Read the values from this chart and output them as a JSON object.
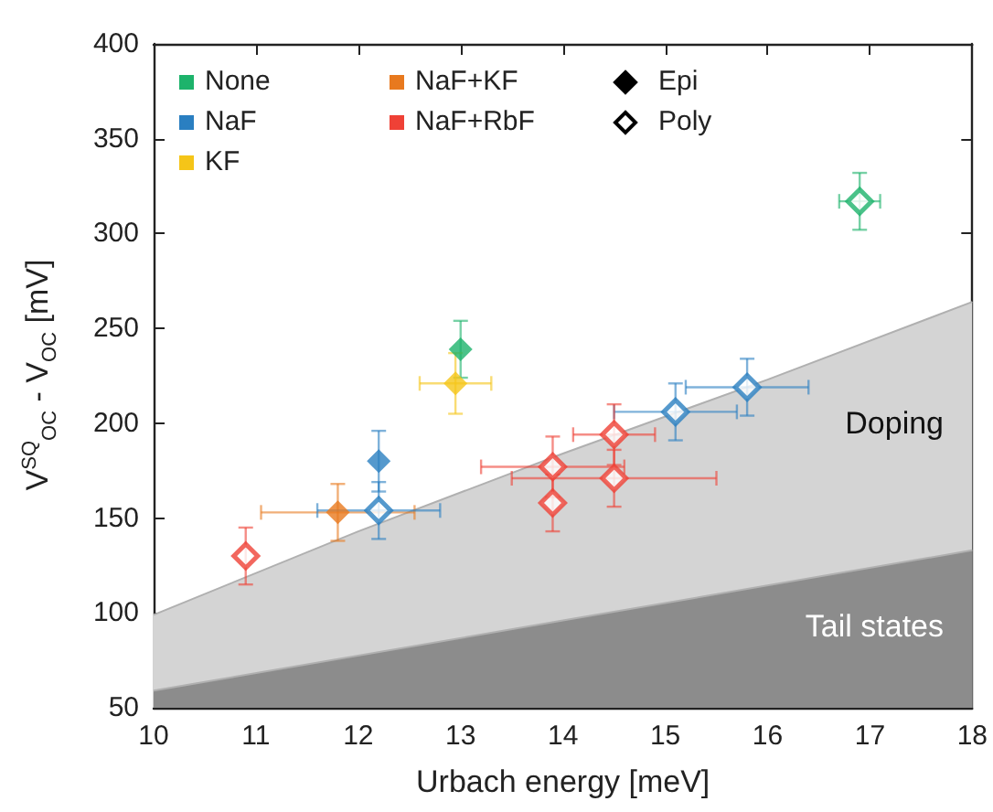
{
  "chart_data": {
    "type": "scatter",
    "xlabel": "Urbach energy [meV]",
    "ylabel": "V$^{SQ}$$_{OC}$ - V$_{OC}$ [mV]",
    "xlim": [
      10,
      18
    ],
    "xticks": [
      10,
      11,
      12,
      13,
      14,
      15,
      16,
      17,
      18
    ],
    "ylim": [
      50,
      400
    ],
    "yticks": [
      50,
      100,
      150,
      200,
      250,
      300,
      350,
      400
    ],
    "grid": false,
    "annotations": [
      "None",
      "NaF",
      "KF",
      "NaF+KF",
      "NaF+RbF",
      "Epi",
      "Poly"
    ],
    "series": [
      {
        "type": "area",
        "name": "Doping",
        "color": "#d4d4d4",
        "x": [
          10,
          12,
          14,
          16,
          18
        ],
        "values": [
          99,
          143,
          184,
          223,
          264
        ]
      },
      {
        "type": "area",
        "name": "Tail states",
        "color": "#8c8c8c",
        "x": [
          10,
          14,
          18
        ],
        "values": [
          59,
          96,
          133
        ]
      },
      {
        "marker": "diamond",
        "x": [
          13.0,
          12.2,
          12.95,
          11.8
        ],
        "values": [
          239,
          180,
          221,
          153
        ],
        "colors": [
          "#1db36b",
          "#2a7fc1",
          "#f5c518",
          "#e8791e"
        ],
        "errors": [
          15,
          16,
          16,
          15
        ],
        "xerrors": [
          null,
          null,
          0.35,
          0.75
        ]
      },
      {
        "marker": "diamond",
        "x": [
          16.9,
          12.2,
          15.1,
          15.8,
          10.9,
          13.9,
          13.9,
          14.5,
          14.5
        ],
        "values": [
          317,
          154,
          206,
          219,
          130,
          177,
          158,
          194,
          171
        ],
        "colors": [
          "#1db36b",
          "#2a7fc1",
          "#2a7fc1",
          "#2a7fc1",
          "#ef4136",
          "#ef4136",
          "#ef4136",
          "#ef4136",
          "#ef4136"
        ],
        "errors": [
          15,
          15,
          15,
          15,
          15,
          16,
          15,
          16,
          15
        ],
        "xerrors": [
          0.2,
          0.6,
          0.6,
          0.6,
          null,
          0.7,
          null,
          0.4,
          [
            13.5,
            15.5
          ]
        ]
      }
    ]
  }
}
